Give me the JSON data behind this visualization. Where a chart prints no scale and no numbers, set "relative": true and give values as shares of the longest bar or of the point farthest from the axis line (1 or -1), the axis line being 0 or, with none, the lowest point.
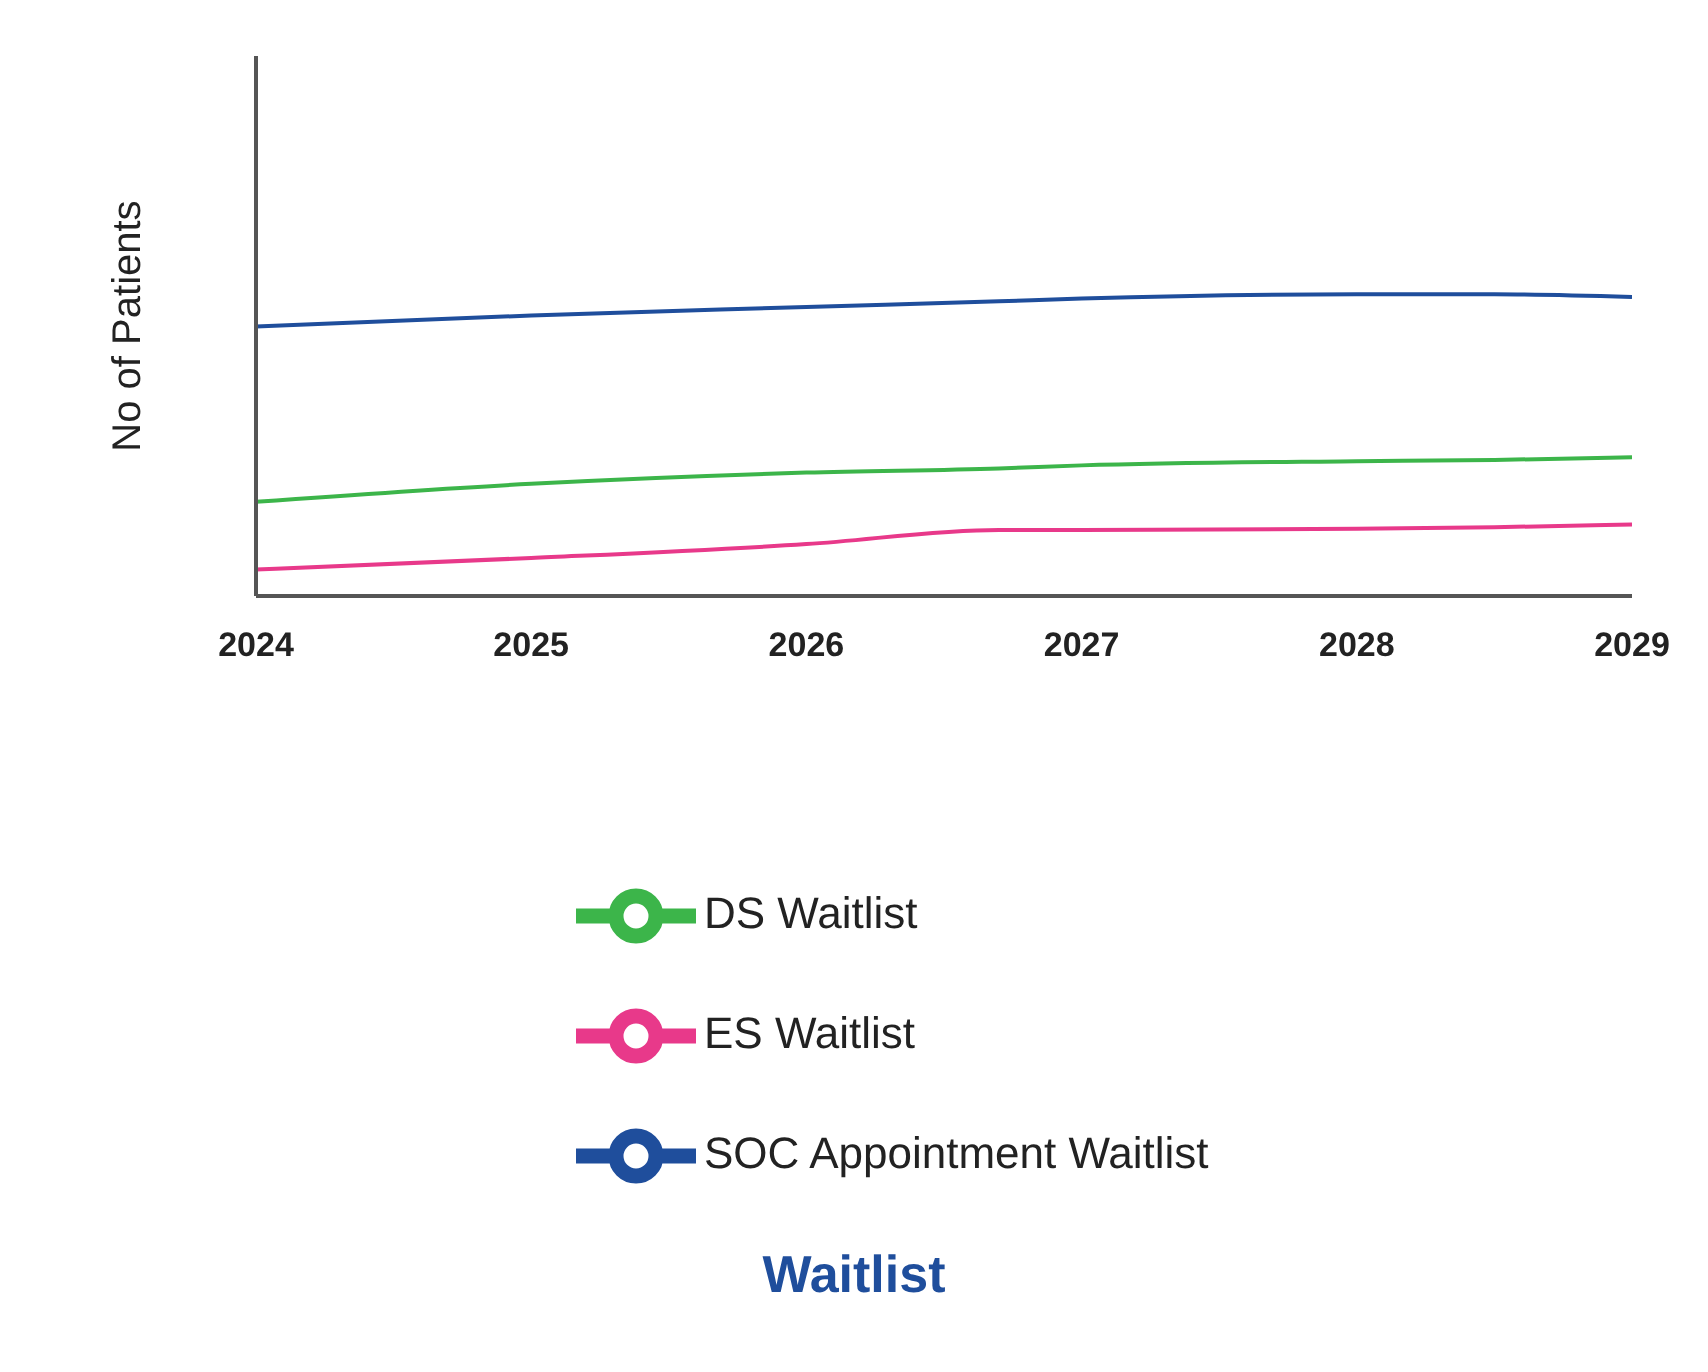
{
  "chart_data": {
    "type": "line",
    "title": "Waitlist",
    "ylabel": "No of Patients",
    "relative": true,
    "x": [
      2024,
      2025,
      2026,
      2026.7,
      2027,
      2028,
      2028.5,
      2029
    ],
    "xlim": [
      2024,
      2029
    ],
    "xticks": [
      2024,
      2025,
      2026,
      2027,
      2028,
      2029
    ],
    "legend": "bottom",
    "grid": false,
    "marker": "none",
    "series": [
      {
        "name": "ES Waitlist",
        "color": "#e8398a",
        "values": [
          0.088,
          0.126,
          0.172,
          0.219,
          0.219,
          0.223,
          0.228,
          0.237
        ]
      },
      {
        "name": "DS Waitlist",
        "color": "#3cb54a",
        "values": [
          0.312,
          0.372,
          0.409,
          0.423,
          0.433,
          0.447,
          0.451,
          0.46
        ]
      },
      {
        "name": "SOC Appointment Waitlist",
        "color": "#1f4e9c",
        "values": [
          0.893,
          0.93,
          0.958,
          0.977,
          0.986,
          1.0,
          1.0,
          0.991
        ]
      }
    ]
  }
}
